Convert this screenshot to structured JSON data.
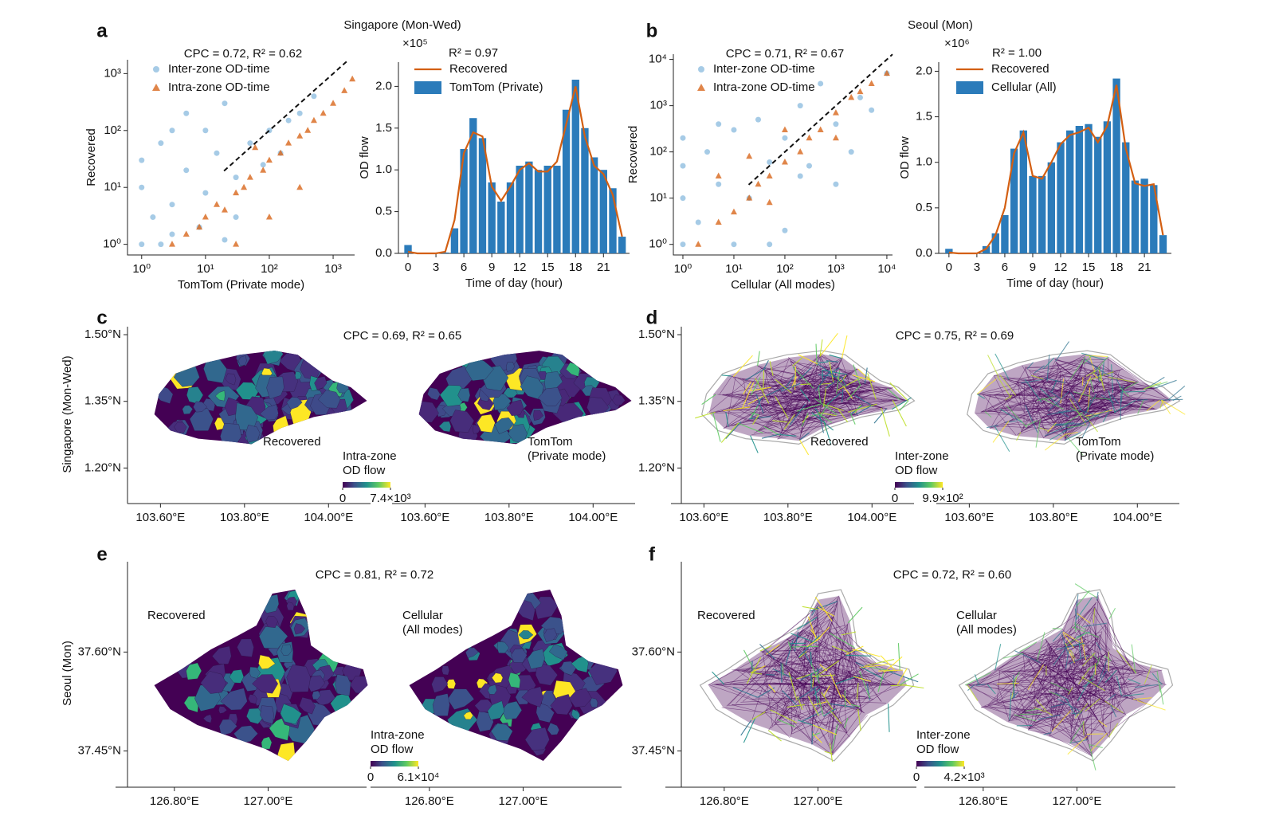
{
  "chart_data": [
    {
      "type": "scatter",
      "label": "a",
      "suptitle": "Singapore (Mon-Wed)",
      "annotation": "CPC = 0.72, R² = 0.62",
      "xlabel": "TomTom (Private mode)",
      "ylabel": "Recovered",
      "log": true,
      "legend": "upper left",
      "xlim": [
        0.6,
        2170
      ],
      "ylim": [
        0.65,
        1750
      ],
      "xticks": [
        {
          "value": 1,
          "label": "10⁰"
        },
        {
          "value": 10,
          "label": "10¹"
        },
        {
          "value": 100,
          "label": "10²"
        },
        {
          "value": 1000,
          "label": "10³"
        }
      ],
      "yticks": [
        {
          "value": 1,
          "label": "10⁰"
        },
        {
          "value": 10,
          "label": "10¹"
        },
        {
          "value": 100,
          "label": "10²"
        },
        {
          "value": 1000,
          "label": "10³"
        }
      ],
      "series": [
        {
          "name": "Inter-zone OD-time",
          "color": "#3a8cc8",
          "marker": "circle",
          "x": [
            1,
            1,
            1,
            1.5,
            2,
            2,
            3,
            3,
            5,
            5,
            8,
            10,
            10,
            15,
            20,
            30,
            30,
            50,
            80,
            100,
            150,
            200,
            300,
            500,
            3,
            20
          ],
          "values": [
            1,
            10,
            30,
            3,
            1,
            60,
            5,
            100,
            20,
            200,
            2,
            8,
            100,
            40,
            300,
            15,
            3,
            60,
            25,
            100,
            40,
            150,
            200,
            400,
            1.5,
            1.2
          ]
        },
        {
          "name": "Intra-zone OD-time",
          "color": "#d8661c",
          "marker": "triangle",
          "x": [
            3,
            5,
            8,
            10,
            15,
            20,
            30,
            40,
            50,
            80,
            100,
            150,
            200,
            300,
            400,
            500,
            700,
            1000,
            1500,
            2000,
            30,
            100,
            300,
            60
          ],
          "values": [
            1,
            1.5,
            2,
            3,
            5,
            4,
            8,
            10,
            15,
            20,
            30,
            40,
            60,
            80,
            100,
            150,
            200,
            300,
            500,
            800,
            1,
            3,
            10,
            50
          ]
        }
      ]
    },
    {
      "type": "bar",
      "annotation": "R² = 0.97",
      "scale_label": "×10⁵",
      "xlabel": "Time of day (hour)",
      "ylabel": "OD flow",
      "x": [
        0,
        1,
        2,
        3,
        4,
        5,
        6,
        7,
        8,
        9,
        10,
        11,
        12,
        13,
        14,
        15,
        16,
        17,
        18,
        19,
        20,
        21,
        22,
        23
      ],
      "xlim": [
        -1.03,
        23.8
      ],
      "ylim": [
        0,
        2.29
      ],
      "xticks": [
        0,
        3,
        6,
        9,
        12,
        15,
        18,
        21
      ],
      "yticks": [
        {
          "value": 0,
          "label": "0.0"
        },
        0.5,
        {
          "value": 1,
          "label": "1.0"
        },
        1.5,
        {
          "value": 2,
          "label": "2.0"
        }
      ],
      "series": [
        {
          "name": "Recovered",
          "type": "line",
          "color": "#d35f12",
          "values": [
            0.02,
            0,
            0,
            0,
            0.02,
            0.4,
            1.2,
            1.45,
            1.4,
            0.8,
            0.63,
            0.8,
            1.0,
            1.08,
            0.98,
            0.98,
            1.1,
            1.55,
            2.0,
            1.4,
            1.05,
            0.95,
            0.7,
            0.2
          ]
        },
        {
          "name": "TomTom (Private)",
          "type": "bar",
          "color": "#2b7bba",
          "values": [
            0.1,
            0,
            0,
            0,
            0.01,
            0.3,
            1.25,
            1.62,
            1.38,
            0.85,
            0.62,
            0.85,
            1.05,
            1.1,
            1.0,
            1.05,
            1.05,
            1.72,
            2.08,
            1.5,
            1.15,
            1.0,
            0.78,
            0.2
          ]
        }
      ]
    },
    {
      "type": "scatter",
      "label": "b",
      "suptitle": "Seoul (Mon)",
      "annotation": "CPC = 0.71, R² = 0.67",
      "xlabel": "Cellular (All modes)",
      "ylabel": "Recovered",
      "log": true,
      "legend": "upper left",
      "xlim": [
        0.65,
        12900
      ],
      "ylim": [
        0.59,
        13000
      ],
      "xticks": [
        {
          "value": 1,
          "label": "10⁰"
        },
        {
          "value": 10,
          "label": "10¹"
        },
        {
          "value": 100,
          "label": "10²"
        },
        {
          "value": 1000,
          "label": "10³"
        },
        {
          "value": 10000,
          "label": "10⁴"
        }
      ],
      "yticks": [
        {
          "value": 1,
          "label": "10⁰"
        },
        {
          "value": 10,
          "label": "10¹"
        },
        {
          "value": 100,
          "label": "10²"
        },
        {
          "value": 1000,
          "label": "10³"
        },
        {
          "value": 10000,
          "label": "10⁴"
        }
      ],
      "series": [
        {
          "name": "Inter-zone OD-time",
          "color": "#3a8cc8",
          "marker": "circle",
          "x": [
            1,
            1,
            1,
            2,
            3,
            5,
            10,
            10,
            20,
            30,
            50,
            100,
            100,
            200,
            300,
            500,
            1000,
            2000,
            3000,
            5000,
            10000,
            1,
            5,
            50,
            200,
            1000
          ],
          "values": [
            1,
            10,
            50,
            3,
            100,
            20,
            1,
            300,
            10,
            500,
            60,
            200,
            2,
            1000,
            50,
            3000,
            400,
            100,
            1500,
            800,
            5000,
            200,
            400,
            1,
            30,
            20
          ]
        },
        {
          "name": "Intra-zone OD-time",
          "color": "#d8661c",
          "marker": "triangle",
          "x": [
            2,
            5,
            10,
            20,
            30,
            50,
            100,
            200,
            300,
            500,
            1000,
            2000,
            3000,
            5000,
            10000,
            20,
            100,
            1000,
            50,
            5
          ],
          "values": [
            1,
            3,
            5,
            10,
            20,
            30,
            60,
            100,
            200,
            300,
            700,
            1500,
            2000,
            3000,
            5000,
            80,
            300,
            200,
            8,
            30
          ]
        }
      ]
    },
    {
      "type": "bar",
      "annotation": "R² = 1.00",
      "scale_label": "×10⁶",
      "xlabel": "Time of day (hour)",
      "ylabel": "OD flow",
      "x": [
        0,
        1,
        2,
        3,
        4,
        5,
        6,
        7,
        8,
        9,
        10,
        11,
        12,
        13,
        14,
        15,
        16,
        17,
        18,
        19,
        20,
        21,
        22,
        23
      ],
      "xlim": [
        -1.1,
        23.9
      ],
      "ylim": [
        0,
        2.1
      ],
      "xticks": [
        0,
        3,
        6,
        9,
        12,
        15,
        18,
        21
      ],
      "yticks": [
        {
          "value": 0,
          "label": "0.0"
        },
        0.5,
        {
          "value": 1,
          "label": "1.0"
        },
        1.5,
        {
          "value": 2,
          "label": "2.0"
        }
      ],
      "series": [
        {
          "name": "Recovered",
          "type": "line",
          "color": "#d35f12",
          "values": [
            0.01,
            0,
            0,
            0,
            0.05,
            0.2,
            0.5,
            1.1,
            1.33,
            0.85,
            0.82,
            1.0,
            1.2,
            1.3,
            1.33,
            1.38,
            1.22,
            1.4,
            1.85,
            1.15,
            0.77,
            0.74,
            0.76,
            0.2
          ]
        },
        {
          "name": "Cellular (All)",
          "type": "bar",
          "color": "#2b7bba",
          "values": [
            0.05,
            0,
            0,
            0,
            0.08,
            0.22,
            0.42,
            1.15,
            1.35,
            0.85,
            0.85,
            1.0,
            1.22,
            1.35,
            1.4,
            1.42,
            1.28,
            1.45,
            1.92,
            1.22,
            0.8,
            0.82,
            0.75,
            0.2
          ]
        }
      ]
    },
    {
      "type": "map",
      "label": "c",
      "kind": "choropleth",
      "annotation": "CPC = 0.69, R² = 0.65",
      "ylabel": "Singapore (Mon-Wed)",
      "latlim": [
        1.12,
        1.518
      ],
      "lonlim": [
        103.55,
        104.1
      ],
      "lat_ticks": [
        {
          "value": 1.2,
          "label": "1.20°N"
        },
        {
          "value": 1.35,
          "label": "1.35°N"
        },
        {
          "value": 1.5,
          "label": "1.50°N"
        }
      ],
      "lon_ticks": [
        {
          "value": 103.6,
          "label": "103.60°E"
        },
        {
          "value": 103.8,
          "label": "103.80°E"
        },
        {
          "value": 104,
          "label": "104.00°E"
        }
      ],
      "maps": [
        [
          "Recovered"
        ],
        [
          "TomTom",
          "(Private mode)"
        ]
      ],
      "colorbar": {
        "title": [
          "Intra-zone",
          "OD flow"
        ],
        "lim": [
          0,
          7400
        ],
        "ticks": [
          0,
          {
            "value": 7400,
            "label": "7.4×10³"
          }
        ]
      }
    },
    {
      "type": "map",
      "label": "d",
      "kind": "network",
      "annotation": "CPC = 0.75, R² = 0.69",
      "latlim": [
        1.12,
        1.518
      ],
      "lonlim": [
        103.55,
        104.1
      ],
      "lat_ticks": [
        {
          "value": 1.2,
          "label": "1.20°N"
        },
        {
          "value": 1.35,
          "label": "1.35°N"
        },
        {
          "value": 1.5,
          "label": "1.50°N"
        }
      ],
      "lon_ticks": [
        {
          "value": 103.6,
          "label": "103.60°E"
        },
        {
          "value": 103.8,
          "label": "103.80°E"
        },
        {
          "value": 104,
          "label": "104.00°E"
        }
      ],
      "maps": [
        [
          "Recovered"
        ],
        [
          "TomTom",
          "(Private mode)"
        ]
      ],
      "colorbar": {
        "title": [
          "Inter-zone",
          "OD flow"
        ],
        "lim": [
          0,
          990
        ],
        "ticks": [
          0,
          {
            "value": 990,
            "label": "9.9×10²"
          }
        ]
      }
    },
    {
      "type": "map",
      "label": "e",
      "kind": "choropleth",
      "annotation": "CPC = 0.81, R² = 0.72",
      "ylabel": "Seoul (Mon)",
      "latlim": [
        37.395,
        37.737
      ],
      "lonlim": [
        126.7,
        127.21
      ],
      "lat_ticks": [
        {
          "value": 37.45,
          "label": "37.45°N"
        },
        {
          "value": 37.6,
          "label": "37.60°N"
        }
      ],
      "lon_ticks": [
        {
          "value": 126.8,
          "label": "126.80°E"
        },
        {
          "value": 127,
          "label": "127.00°E"
        }
      ],
      "maps": [
        [
          "Recovered"
        ],
        [
          "Cellular",
          "(All modes)"
        ]
      ],
      "colorbar": {
        "title": [
          "Intra-zone",
          "OD flow"
        ],
        "lim": [
          0,
          61000
        ],
        "ticks": [
          0,
          {
            "value": 61000,
            "label": "6.1×10⁴"
          }
        ]
      }
    },
    {
      "type": "map",
      "label": "f",
      "kind": "network",
      "annotation": "CPC = 0.72, R² = 0.60",
      "latlim": [
        37.395,
        37.737
      ],
      "lonlim": [
        126.7,
        127.21
      ],
      "lat_ticks": [
        {
          "value": 37.45,
          "label": "37.45°N"
        },
        {
          "value": 37.6,
          "label": "37.60°N"
        }
      ],
      "lon_ticks": [
        {
          "value": 126.8,
          "label": "126.80°E"
        },
        {
          "value": 127,
          "label": "127.00°E"
        }
      ],
      "maps": [
        [
          "Recovered"
        ],
        [
          "Cellular",
          "(All modes)"
        ]
      ],
      "colorbar": {
        "title": [
          "Inter-zone",
          "OD flow"
        ],
        "lim": [
          0,
          4200
        ],
        "ticks": [
          0,
          {
            "value": 4200,
            "label": "4.2×10³"
          }
        ]
      }
    }
  ]
}
